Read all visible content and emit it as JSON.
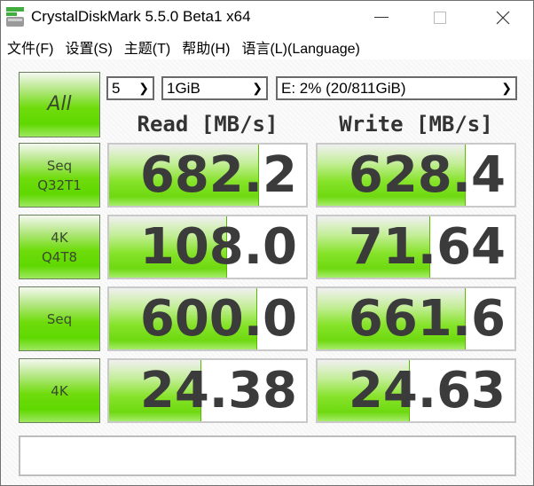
{
  "window": {
    "title": "CrystalDiskMark 5.5.0 Beta1 x64",
    "icons": [
      "app-icon",
      "minimize-icon",
      "maximize-icon",
      "close-icon"
    ]
  },
  "menu": [
    {
      "label": "文件(F)"
    },
    {
      "label": "设置(S)"
    },
    {
      "label": "主题(T)"
    },
    {
      "label": "帮助(H)"
    },
    {
      "label": "语言(L)(Language)"
    }
  ],
  "controls": {
    "all_label": "All",
    "count": "5",
    "size": "1GiB",
    "drive": "E: 2% (20/811GiB)"
  },
  "headers": {
    "read": "Read [MB/s]",
    "write": "Write [MB/s]"
  },
  "colors": {
    "accent_green": "#66dd00",
    "value_text": "#3b3b3b"
  },
  "rows": [
    {
      "label1": "Seq",
      "label2": "Q32T1",
      "read": "682.2",
      "write": "628.4",
      "read_fill_pct": 76,
      "write_fill_pct": 75
    },
    {
      "label1": "4K",
      "label2": "Q4T8",
      "read": "108.0",
      "write": "71.64",
      "read_fill_pct": 60,
      "write_fill_pct": 57
    },
    {
      "label1": "Seq",
      "label2": "",
      "read": "600.0",
      "write": "661.6",
      "read_fill_pct": 75,
      "write_fill_pct": 75
    },
    {
      "label1": "4K",
      "label2": "",
      "read": "24.38",
      "write": "24.63",
      "read_fill_pct": 47,
      "write_fill_pct": 47
    }
  ],
  "comment": ""
}
